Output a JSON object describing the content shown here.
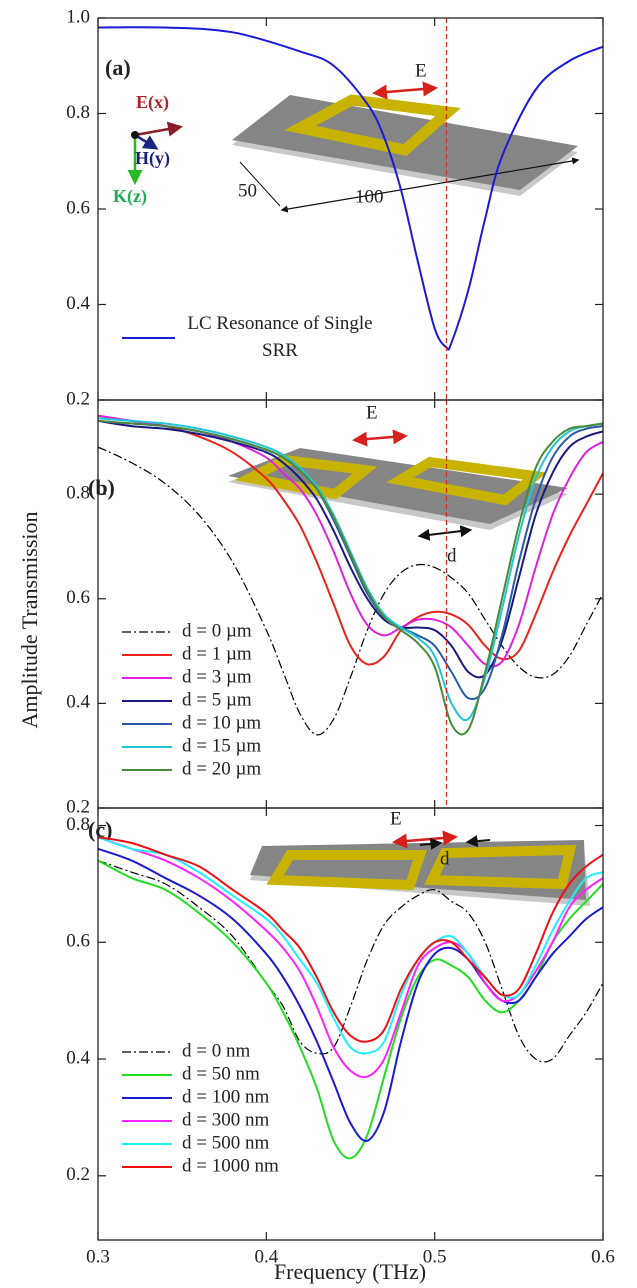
{
  "chart_data": [
    {
      "type": "line",
      "panel_label": "(a)",
      "annotations": [
        "E",
        "E(x)",
        "H(y)",
        "K(z)",
        "50",
        "100"
      ],
      "xlim": [
        0.3,
        0.6
      ],
      "ylim": [
        0.2,
        1.0
      ],
      "yticks": [
        0.2,
        0.4,
        0.6,
        {
          "value": 1,
          "label": "1.0"
        },
        0.8
      ],
      "vline": 0.507,
      "vline_color": "#e8231a",
      "x": [
        0.3,
        0.34,
        0.38,
        0.42,
        0.44,
        0.46,
        0.47,
        0.48,
        0.49,
        0.5,
        0.507,
        0.51,
        0.52,
        0.53,
        0.54,
        0.56,
        0.58,
        0.6
      ],
      "series": [
        {
          "name": "LC Resonance of Single SRR",
          "color": "#1a1ad8",
          "values": [
            0.98,
            0.98,
            0.97,
            0.93,
            0.9,
            0.82,
            0.75,
            0.64,
            0.49,
            0.35,
            0.31,
            0.32,
            0.43,
            0.58,
            0.71,
            0.85,
            0.91,
            0.94
          ]
        }
      ]
    },
    {
      "type": "line",
      "panel_label": "(b)",
      "annotations": [
        "E",
        "d"
      ],
      "y_label": "Amplitude Transmission",
      "xlim": [
        0.3,
        0.6
      ],
      "ylim": [
        0.2,
        0.98
      ],
      "yticks": [
        0.2,
        0.4,
        0.6,
        0.8
      ],
      "vline": 0.507,
      "vline_color": "#e8231a",
      "x": [
        0.3,
        0.32,
        0.34,
        0.36,
        0.38,
        0.4,
        0.41,
        0.42,
        0.43,
        0.44,
        0.45,
        0.46,
        0.47,
        0.48,
        0.49,
        0.5,
        0.51,
        0.52,
        0.53,
        0.54,
        0.55,
        0.56,
        0.57,
        0.58,
        0.59,
        0.6
      ],
      "series": [
        {
          "name": "d = 0 µm",
          "color": "#000000",
          "linestyle": "dashdot",
          "values": [
            0.89,
            0.86,
            0.82,
            0.76,
            0.67,
            0.54,
            0.46,
            0.38,
            0.34,
            0.37,
            0.45,
            0.54,
            0.61,
            0.65,
            0.665,
            0.66,
            0.64,
            0.61,
            0.56,
            0.51,
            0.47,
            0.45,
            0.455,
            0.49,
            0.55,
            0.61
          ]
        },
        {
          "name": "d = 1 µm",
          "color": "#e8231a",
          "values": [
            0.95,
            0.94,
            0.93,
            0.91,
            0.88,
            0.83,
            0.79,
            0.74,
            0.67,
            0.59,
            0.51,
            0.475,
            0.49,
            0.54,
            0.565,
            0.575,
            0.57,
            0.55,
            0.51,
            0.485,
            0.5,
            0.57,
            0.65,
            0.72,
            0.78,
            0.84
          ]
        },
        {
          "name": "d = 3 µm",
          "color": "#e020e0",
          "values": [
            0.95,
            0.94,
            0.93,
            0.92,
            0.9,
            0.87,
            0.84,
            0.81,
            0.76,
            0.69,
            0.61,
            0.55,
            0.53,
            0.545,
            0.56,
            0.56,
            0.545,
            0.51,
            0.475,
            0.48,
            0.55,
            0.66,
            0.76,
            0.83,
            0.88,
            0.9
          ]
        },
        {
          "name": "d = 5 µm",
          "color": "#1a1a80",
          "values": [
            0.94,
            0.93,
            0.925,
            0.915,
            0.9,
            0.88,
            0.86,
            0.83,
            0.79,
            0.73,
            0.66,
            0.6,
            0.56,
            0.545,
            0.545,
            0.54,
            0.51,
            0.46,
            0.455,
            0.52,
            0.64,
            0.76,
            0.84,
            0.89,
            0.91,
            0.92
          ]
        },
        {
          "name": "d = 10 µm",
          "color": "#2a5aa8",
          "values": [
            0.94,
            0.935,
            0.93,
            0.92,
            0.905,
            0.885,
            0.87,
            0.845,
            0.81,
            0.75,
            0.68,
            0.61,
            0.565,
            0.545,
            0.53,
            0.51,
            0.46,
            0.41,
            0.43,
            0.53,
            0.67,
            0.79,
            0.87,
            0.91,
            0.925,
            0.93
          ]
        },
        {
          "name": "d = 15 µm",
          "color": "#22c4d8",
          "values": [
            0.945,
            0.94,
            0.935,
            0.925,
            0.91,
            0.89,
            0.875,
            0.85,
            0.815,
            0.76,
            0.69,
            0.62,
            0.57,
            0.545,
            0.525,
            0.49,
            0.4,
            0.37,
            0.45,
            0.58,
            0.72,
            0.83,
            0.89,
            0.92,
            0.93,
            0.935
          ]
        },
        {
          "name": "d = 20 µm",
          "color": "#4a8a3a",
          "values": [
            0.94,
            0.935,
            0.93,
            0.92,
            0.905,
            0.885,
            0.87,
            0.845,
            0.81,
            0.755,
            0.685,
            0.615,
            0.565,
            0.54,
            0.515,
            0.47,
            0.36,
            0.35,
            0.46,
            0.6,
            0.74,
            0.85,
            0.9,
            0.925,
            0.93,
            0.935
          ]
        }
      ]
    },
    {
      "type": "line",
      "panel_label": "(c)",
      "annotations": [
        "E",
        "d"
      ],
      "x_label": "Frequency (THz)",
      "xlim": [
        0.3,
        0.6
      ],
      "ylim": [
        0.09,
        0.83
      ],
      "xticks": [
        0.3,
        0.4,
        0.5,
        0.6
      ],
      "yticks": [
        0.2,
        0.4,
        0.6,
        0.8
      ],
      "x": [
        0.3,
        0.32,
        0.34,
        0.36,
        0.38,
        0.4,
        0.41,
        0.42,
        0.43,
        0.44,
        0.45,
        0.46,
        0.47,
        0.48,
        0.49,
        0.5,
        0.51,
        0.52,
        0.53,
        0.54,
        0.55,
        0.56,
        0.57,
        0.58,
        0.59,
        0.6
      ],
      "series": [
        {
          "name": "d = 0 nm",
          "color": "#000000",
          "linestyle": "dashdot",
          "values": [
            0.74,
            0.72,
            0.7,
            0.66,
            0.61,
            0.53,
            0.49,
            0.43,
            0.41,
            0.42,
            0.49,
            0.57,
            0.63,
            0.66,
            0.68,
            0.69,
            0.67,
            0.65,
            0.6,
            0.52,
            0.44,
            0.4,
            0.4,
            0.44,
            0.48,
            0.53
          ]
        },
        {
          "name": "d = 50 nm",
          "color": "#22dd22",
          "values": [
            0.74,
            0.71,
            0.69,
            0.65,
            0.6,
            0.53,
            0.48,
            0.42,
            0.35,
            0.26,
            0.23,
            0.27,
            0.37,
            0.47,
            0.54,
            0.57,
            0.56,
            0.54,
            0.5,
            0.48,
            0.5,
            0.54,
            0.6,
            0.64,
            0.67,
            0.7
          ]
        },
        {
          "name": "d = 100 nm",
          "color": "#1a1ad0",
          "values": [
            0.76,
            0.74,
            0.71,
            0.68,
            0.64,
            0.58,
            0.54,
            0.49,
            0.43,
            0.36,
            0.29,
            0.26,
            0.31,
            0.43,
            0.53,
            0.58,
            0.59,
            0.57,
            0.53,
            0.5,
            0.5,
            0.54,
            0.58,
            0.61,
            0.64,
            0.66
          ]
        },
        {
          "name": "d = 300 nm",
          "color": "#ff22ff",
          "values": [
            0.78,
            0.76,
            0.74,
            0.71,
            0.67,
            0.62,
            0.59,
            0.55,
            0.49,
            0.42,
            0.38,
            0.37,
            0.4,
            0.48,
            0.56,
            0.59,
            0.6,
            0.58,
            0.53,
            0.5,
            0.51,
            0.55,
            0.6,
            0.66,
            0.69,
            0.71
          ]
        },
        {
          "name": "d = 500 nm",
          "color": "#22eeff",
          "values": [
            0.78,
            0.76,
            0.75,
            0.72,
            0.68,
            0.64,
            0.61,
            0.57,
            0.53,
            0.47,
            0.42,
            0.41,
            0.43,
            0.51,
            0.57,
            0.6,
            0.61,
            0.58,
            0.54,
            0.51,
            0.51,
            0.56,
            0.62,
            0.67,
            0.71,
            0.72
          ]
        },
        {
          "name": "d = 1000 nm",
          "color": "#ee1111",
          "values": [
            0.78,
            0.77,
            0.75,
            0.73,
            0.69,
            0.65,
            0.62,
            0.59,
            0.54,
            0.48,
            0.44,
            0.43,
            0.45,
            0.52,
            0.57,
            0.6,
            0.6,
            0.57,
            0.54,
            0.51,
            0.52,
            0.58,
            0.65,
            0.7,
            0.73,
            0.75
          ]
        }
      ]
    }
  ]
}
